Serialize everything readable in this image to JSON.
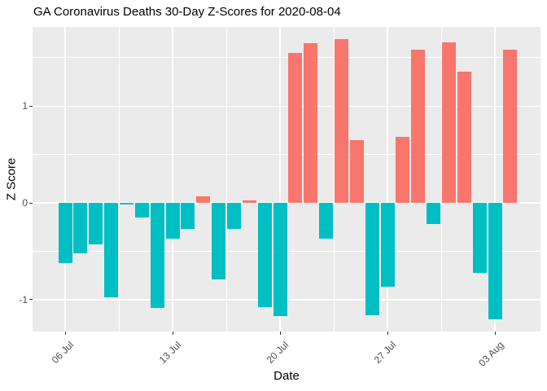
{
  "chart_data": {
    "type": "bar",
    "title": "GA Coronavirus Deaths 30-Day Z-Scores for 2020-08-04",
    "xlabel": "Date",
    "ylabel": "Z Score",
    "categories": [
      "06 Jul",
      "07 Jul",
      "08 Jul",
      "09 Jul",
      "10 Jul",
      "11 Jul",
      "12 Jul",
      "13 Jul",
      "14 Jul",
      "15 Jul",
      "16 Jul",
      "17 Jul",
      "18 Jul",
      "19 Jul",
      "20 Jul",
      "21 Jul",
      "22 Jul",
      "23 Jul",
      "24 Jul",
      "25 Jul",
      "26 Jul",
      "27 Jul",
      "28 Jul",
      "29 Jul",
      "30 Jul",
      "31 Jul",
      "01 Aug",
      "02 Aug",
      "03 Aug",
      "04 Aug"
    ],
    "values": [
      -0.62,
      -0.52,
      -0.43,
      -0.98,
      -0.02,
      -0.15,
      -1.09,
      -0.37,
      -0.27,
      0.07,
      -0.79,
      -0.27,
      0.03,
      -1.08,
      -1.17,
      1.55,
      1.65,
      -0.37,
      1.69,
      0.65,
      -1.16,
      -0.87,
      0.68,
      1.58,
      -0.22,
      1.66,
      1.36,
      -0.72,
      -1.2,
      1.58
    ],
    "x_ticks": [
      {
        "label": "06 Jul",
        "day": 0
      },
      {
        "label": "13 Jul",
        "day": 7
      },
      {
        "label": "20 Jul",
        "day": 14
      },
      {
        "label": "27 Jul",
        "day": 21
      },
      {
        "label": "03 Aug",
        "day": 28
      }
    ],
    "x_minor_days": [
      3.5,
      10.5,
      17.5,
      24.5
    ],
    "y_ticks": [
      {
        "label": "-1",
        "value": -1
      },
      {
        "label": "0",
        "value": 0
      },
      {
        "label": "1",
        "value": 1
      }
    ],
    "y_minor": [
      -0.5,
      0.5,
      1.5
    ],
    "ylim": [
      -1.33,
      1.82
    ],
    "x_day_range": [
      0,
      29
    ],
    "grid": true,
    "legend": "none",
    "colors": {
      "positive": "#F8766D",
      "negative": "#00BFC4",
      "panel_bg": "#EBEBEB",
      "grid": "#FFFFFF",
      "tick": "#333333",
      "tick_label": "#4D4D4D",
      "title": "#000000"
    }
  }
}
